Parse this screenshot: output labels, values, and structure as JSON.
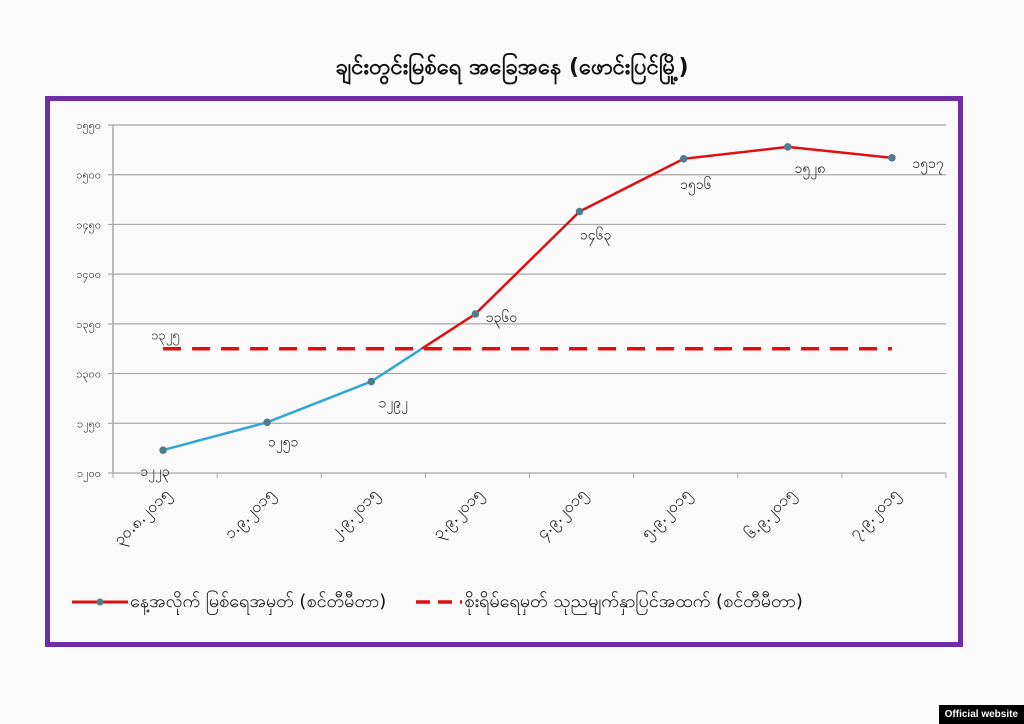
{
  "page": {
    "title": "ချင်းတွင်းမြစ်ရေ အခြေအနေ (ဖောင်းပြင်မြို့)",
    "badge": "Official website"
  },
  "colors": {
    "frame": "#6f2da8",
    "series_blue": "#2ea7d6",
    "series_red": "#e01010",
    "threshold": "#e01010",
    "grid": "#a8a8a8",
    "marker": "#4f7d8e"
  },
  "legend": {
    "series1": "နေ့အလိုက် မြစ်ရေအမှတ် (စင်တီမီတာ)",
    "series2": "စိုးရိမ်ရေမှတ် သုညမျက်နှာပြင်အထက် (စင်တီမီတာ)"
  },
  "chart_data": {
    "type": "line",
    "title": "ချင်းတွင်းမြစ်ရေ အခြေအနေ (ဖောင်းပြင်မြို့)",
    "xlabel": "",
    "ylabel": "",
    "categories": [
      "၃၀.၈.၂၀၁၅",
      "၁.၉.၂၀၁၅",
      "၂.၉.၂၀၁၅",
      "၃.၉.၂၀၁၅",
      "၄.၉.၂၀၁၅",
      "၅.၉.၂၀၁၅",
      "၆.၉.၂၀၁၅",
      "၇.၉.၂၀၁၅"
    ],
    "categories_western": [
      "30.8.2015",
      "1.9.2015",
      "2.9.2015",
      "3.9.2015",
      "4.9.2015",
      "5.9.2015",
      "6.9.2015",
      "7.9.2015"
    ],
    "series": [
      {
        "name": "နေ့အလိုက် မြစ်ရေအမှတ် (စင်တီမီတာ)",
        "values": [
          1223,
          1251,
          1292,
          1360,
          1463,
          1516,
          1528,
          1517
        ],
        "labels": [
          "၁၂၂၃",
          "၁၂၅၁",
          "၁၂၉၂",
          "၁၃၆၀",
          "၁၄၆၃",
          "၁၅၁၆",
          "၁၅၂၈",
          "၁၅၁၇"
        ],
        "style": "solid line with markers, blue below threshold, red above"
      },
      {
        "name": "စိုးရိမ်ရေမှတ် သုညမျက်နှာပြင်အထက် (စင်တီမီတာ)",
        "values": [
          1325,
          1325,
          1325,
          1325,
          1325,
          1325,
          1325,
          1325
        ],
        "labels": [
          "၁၃၂၅"
        ],
        "style": "dashed red"
      }
    ],
    "yticks": [
      1200,
      1250,
      1300,
      1350,
      1400,
      1450,
      1500,
      1550
    ],
    "ytick_labels": [
      "၁၂၀၀",
      "၁၂၅၀",
      "၁၃၀၀",
      "၁၃၅၀",
      "၁၄၀၀",
      "၁၄၅၀",
      "၁၅၀၀",
      "၁၅၅၀"
    ],
    "ylim": [
      1200,
      1550
    ],
    "grid": true,
    "legend_position": "bottom"
  }
}
